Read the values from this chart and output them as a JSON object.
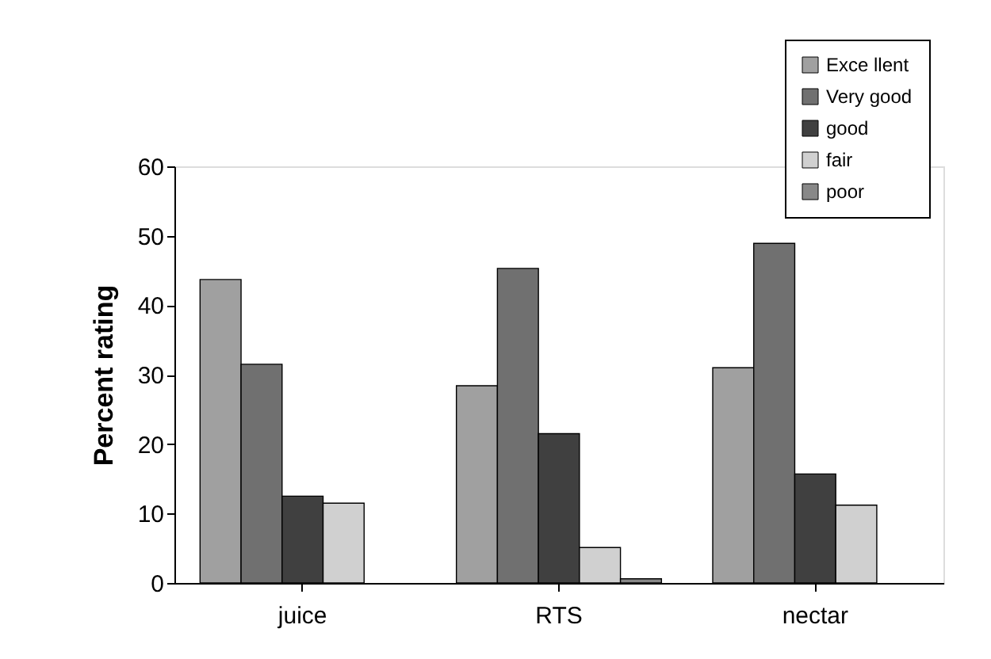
{
  "chart_data": {
    "type": "bar",
    "ylabel": "Percent rating",
    "categories": [
      "juice",
      "RTS",
      "nectar"
    ],
    "series": [
      {
        "name": "Exce llent",
        "color": "#a0a0a0",
        "values": [
          43.7,
          28.4,
          31.0
        ]
      },
      {
        "name": "Very good",
        "color": "#707070",
        "values": [
          31.5,
          45.3,
          48.9
        ]
      },
      {
        "name": "good",
        "color": "#404040",
        "values": [
          12.5,
          21.5,
          15.7
        ]
      },
      {
        "name": "fair",
        "color": "#d0d0d0",
        "values": [
          11.5,
          5.1,
          11.2
        ]
      },
      {
        "name": "poor",
        "color": "#888888",
        "values": [
          null,
          0.6,
          null
        ]
      }
    ],
    "ylim": [
      0,
      60
    ],
    "yticks": [
      0,
      10,
      20,
      30,
      40,
      50,
      60
    ],
    "grid": false,
    "legend": "top right"
  }
}
